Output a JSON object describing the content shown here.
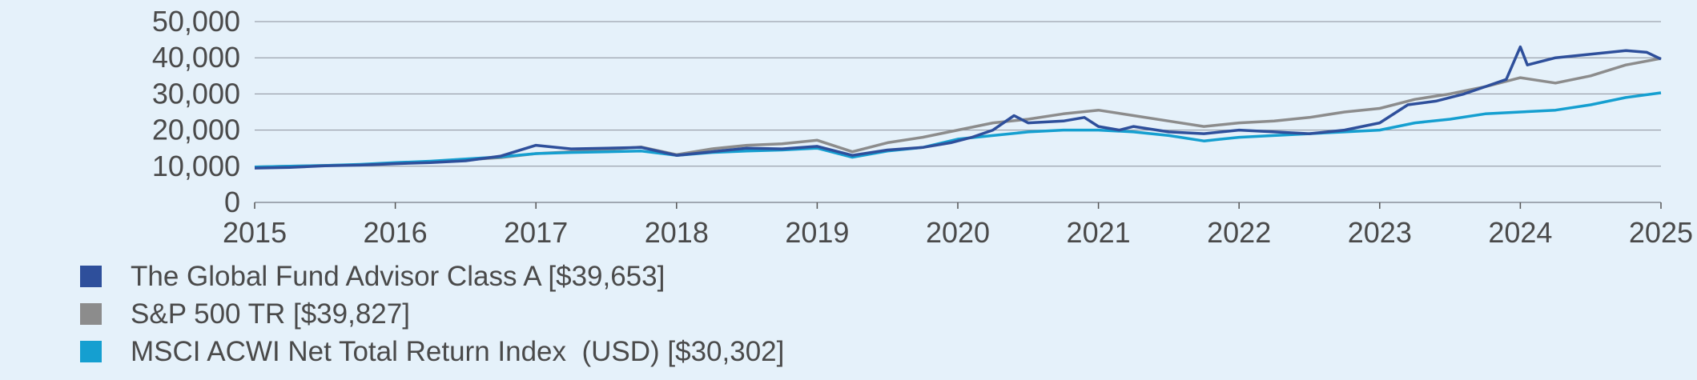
{
  "chart_data": {
    "type": "line",
    "x_ticks": [
      "2015",
      "2016",
      "2017",
      "2018",
      "2019",
      "2020",
      "2021",
      "2022",
      "2023",
      "2024",
      "2025"
    ],
    "y_ticks": [
      "0",
      "10,000",
      "20,000",
      "30,000",
      "40,000",
      "50,000"
    ],
    "ylim": [
      0,
      50000
    ],
    "xlim": [
      2015,
      2025
    ],
    "grid": "horizontal",
    "legend_position": "bottom-left",
    "series": [
      {
        "name": "The Global Fund Advisor Class A [$39,653]",
        "color": "#2e4f9b",
        "points": [
          [
            2015.0,
            9500
          ],
          [
            2015.25,
            9700
          ],
          [
            2015.5,
            10100
          ],
          [
            2015.75,
            10300
          ],
          [
            2016.0,
            10700
          ],
          [
            2016.25,
            11000
          ],
          [
            2016.5,
            11500
          ],
          [
            2016.75,
            12800
          ],
          [
            2017.0,
            15800
          ],
          [
            2017.25,
            14800
          ],
          [
            2017.5,
            15000
          ],
          [
            2017.75,
            15200
          ],
          [
            2018.0,
            13000
          ],
          [
            2018.25,
            14000
          ],
          [
            2018.5,
            15000
          ],
          [
            2018.75,
            14800
          ],
          [
            2019.0,
            15500
          ],
          [
            2019.25,
            13000
          ],
          [
            2019.5,
            14500
          ],
          [
            2019.75,
            15200
          ],
          [
            2019.95,
            16500
          ],
          [
            2020.1,
            18000
          ],
          [
            2020.25,
            20000
          ],
          [
            2020.4,
            24000
          ],
          [
            2020.5,
            22000
          ],
          [
            2020.75,
            22500
          ],
          [
            2020.9,
            23500
          ],
          [
            2021.0,
            21000
          ],
          [
            2021.15,
            20000
          ],
          [
            2021.25,
            21000
          ],
          [
            2021.5,
            19500
          ],
          [
            2021.75,
            19000
          ],
          [
            2022.0,
            20000
          ],
          [
            2022.25,
            19500
          ],
          [
            2022.5,
            19000
          ],
          [
            2022.75,
            20000
          ],
          [
            2023.0,
            22000
          ],
          [
            2023.2,
            27000
          ],
          [
            2023.4,
            28000
          ],
          [
            2023.6,
            30000
          ],
          [
            2023.75,
            32000
          ],
          [
            2023.9,
            34000
          ],
          [
            2024.0,
            43000
          ],
          [
            2024.05,
            38000
          ],
          [
            2024.25,
            40000
          ],
          [
            2024.5,
            41000
          ],
          [
            2024.75,
            42000
          ],
          [
            2024.9,
            41500
          ],
          [
            2025.0,
            39653
          ]
        ]
      },
      {
        "name": "S&P 500 TR [$39,827]",
        "color": "#8c8c8c",
        "points": [
          [
            2015.0,
            9800
          ],
          [
            2015.25,
            10000
          ],
          [
            2015.5,
            10200
          ],
          [
            2015.75,
            10400
          ],
          [
            2016.0,
            10800
          ],
          [
            2016.25,
            11200
          ],
          [
            2016.5,
            11800
          ],
          [
            2016.75,
            12400
          ],
          [
            2017.0,
            13500
          ],
          [
            2017.25,
            14000
          ],
          [
            2017.5,
            14600
          ],
          [
            2017.75,
            15300
          ],
          [
            2018.0,
            13200
          ],
          [
            2018.25,
            14800
          ],
          [
            2018.5,
            15800
          ],
          [
            2018.75,
            16200
          ],
          [
            2019.0,
            17200
          ],
          [
            2019.25,
            14000
          ],
          [
            2019.5,
            16500
          ],
          [
            2019.75,
            18000
          ],
          [
            2020.0,
            20000
          ],
          [
            2020.25,
            22000
          ],
          [
            2020.5,
            23000
          ],
          [
            2020.75,
            24500
          ],
          [
            2021.0,
            25500
          ],
          [
            2021.25,
            24000
          ],
          [
            2021.5,
            22500
          ],
          [
            2021.75,
            21000
          ],
          [
            2022.0,
            22000
          ],
          [
            2022.25,
            22500
          ],
          [
            2022.5,
            23500
          ],
          [
            2022.75,
            25000
          ],
          [
            2023.0,
            26000
          ],
          [
            2023.25,
            28500
          ],
          [
            2023.5,
            30000
          ],
          [
            2023.75,
            32000
          ],
          [
            2024.0,
            34500
          ],
          [
            2024.25,
            33000
          ],
          [
            2024.5,
            35000
          ],
          [
            2024.75,
            38000
          ],
          [
            2025.0,
            39827
          ]
        ]
      },
      {
        "name": "MSCI ACWI Net Total Return Index  (USD) [$30,302]",
        "color": "#159fd0",
        "points": [
          [
            2015.0,
            9800
          ],
          [
            2015.25,
            10000
          ],
          [
            2015.5,
            10200
          ],
          [
            2015.75,
            10500
          ],
          [
            2016.0,
            11000
          ],
          [
            2016.25,
            11400
          ],
          [
            2016.5,
            12000
          ],
          [
            2016.75,
            12600
          ],
          [
            2017.0,
            13500
          ],
          [
            2017.25,
            13800
          ],
          [
            2017.5,
            14000
          ],
          [
            2017.75,
            14200
          ],
          [
            2018.0,
            13000
          ],
          [
            2018.25,
            13800
          ],
          [
            2018.5,
            14200
          ],
          [
            2018.75,
            14500
          ],
          [
            2019.0,
            15000
          ],
          [
            2019.25,
            12500
          ],
          [
            2019.5,
            14200
          ],
          [
            2019.75,
            15200
          ],
          [
            2020.0,
            17500
          ],
          [
            2020.25,
            18500
          ],
          [
            2020.5,
            19500
          ],
          [
            2020.75,
            20000
          ],
          [
            2021.0,
            20000
          ],
          [
            2021.25,
            19500
          ],
          [
            2021.5,
            18500
          ],
          [
            2021.75,
            17000
          ],
          [
            2022.0,
            18000
          ],
          [
            2022.25,
            18500
          ],
          [
            2022.5,
            19000
          ],
          [
            2022.75,
            19500
          ],
          [
            2023.0,
            20000
          ],
          [
            2023.25,
            22000
          ],
          [
            2023.5,
            23000
          ],
          [
            2023.75,
            24500
          ],
          [
            2024.0,
            25000
          ],
          [
            2024.25,
            25500
          ],
          [
            2024.5,
            27000
          ],
          [
            2024.75,
            29000
          ],
          [
            2025.0,
            30302
          ]
        ]
      }
    ]
  }
}
